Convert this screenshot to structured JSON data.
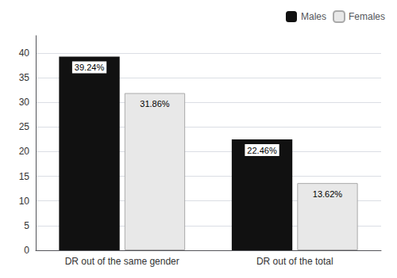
{
  "chart_data": {
    "type": "bar",
    "categories": [
      "DR out of the same gender",
      "DR out of the total"
    ],
    "series": [
      {
        "name": "Males",
        "color": "#111111",
        "values": [
          39.24,
          22.46
        ],
        "value_labels": [
          "39.24%",
          "22.46%"
        ]
      },
      {
        "name": "Females",
        "color": "#e8e8e8",
        "values": [
          31.86,
          13.62
        ],
        "value_labels": [
          "31.86%",
          "13.62%"
        ]
      }
    ],
    "ylim": [
      0,
      43.5
    ],
    "yticks": [
      0,
      5,
      10,
      15,
      20,
      25,
      30,
      35,
      40
    ],
    "grid": true,
    "legend": "upper right",
    "data_labels": true
  }
}
